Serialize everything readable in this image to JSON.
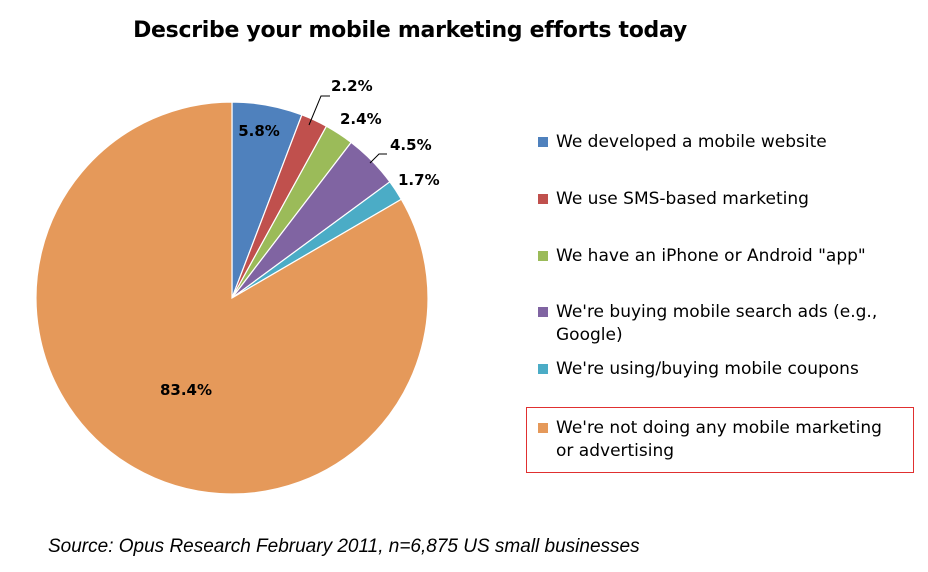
{
  "chart_data": {
    "type": "pie",
    "title": "Describe your mobile marketing efforts today",
    "slices": [
      {
        "name": "We developed a mobile website",
        "value": 5.8,
        "label": "5.8%",
        "color": "#4f81bd"
      },
      {
        "name": "We use SMS-based marketing",
        "value": 2.2,
        "label": "2.2%",
        "color": "#c0504d"
      },
      {
        "name": "We have an iPhone or Android \"app\"",
        "value": 2.4,
        "label": "2.4%",
        "color": "#9bbb59"
      },
      {
        "name": "We're buying mobile search ads (e.g., Google)",
        "value": 4.5,
        "label": "4.5%",
        "color": "#8064a2"
      },
      {
        "name": "We're using/buying mobile coupons",
        "value": 1.7,
        "label": "1.7%",
        "color": "#4bacc6"
      },
      {
        "name": "We're not doing any mobile marketing or advertising",
        "value": 83.4,
        "label": "83.4%",
        "color": "#e5995a"
      }
    ],
    "legend_position": "right",
    "highlighted_legend_item": "We're not doing any mobile marketing or advertising",
    "highlight_color": "#e03030"
  },
  "source": "Source: Opus Research February 2011, n=6,875 US small businesses"
}
